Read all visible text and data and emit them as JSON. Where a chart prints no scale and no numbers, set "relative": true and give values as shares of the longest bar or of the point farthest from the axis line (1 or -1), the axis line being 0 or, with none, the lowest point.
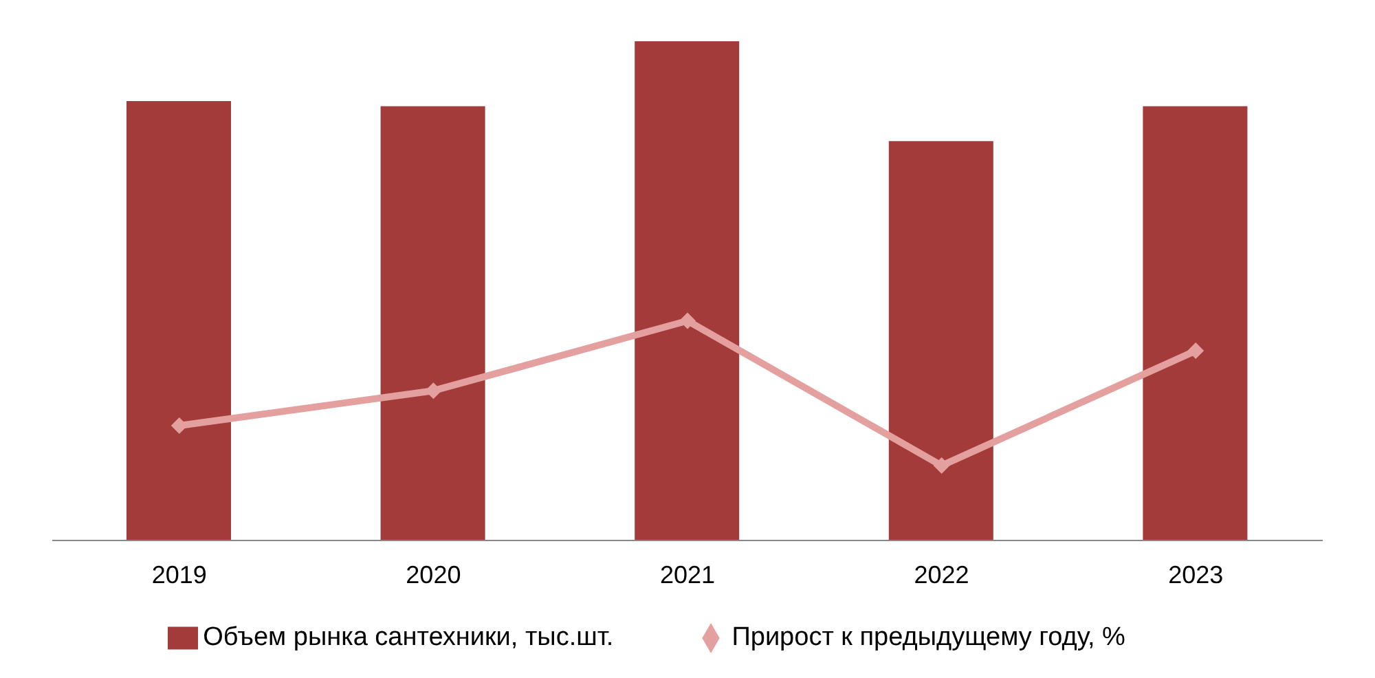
{
  "chart_data": {
    "type": "bar",
    "relative": true,
    "categories": [
      "2019",
      "2020",
      "2021",
      "2022",
      "2023"
    ],
    "series": [
      {
        "name": "Объем рынка сантехники, тыс.шт.",
        "color": "#a33b3a",
        "values": [
          0.88,
          0.87,
          1,
          0.8,
          0.87
        ]
      },
      {
        "name": "Прирост к предыдущему году, %",
        "type": "line",
        "color": "#e3a09f",
        "marker": "diamond",
        "values": [
          0.23,
          0.3,
          0.44,
          0.15,
          0.38
        ]
      }
    ],
    "legend": "bottom",
    "grid": false
  }
}
